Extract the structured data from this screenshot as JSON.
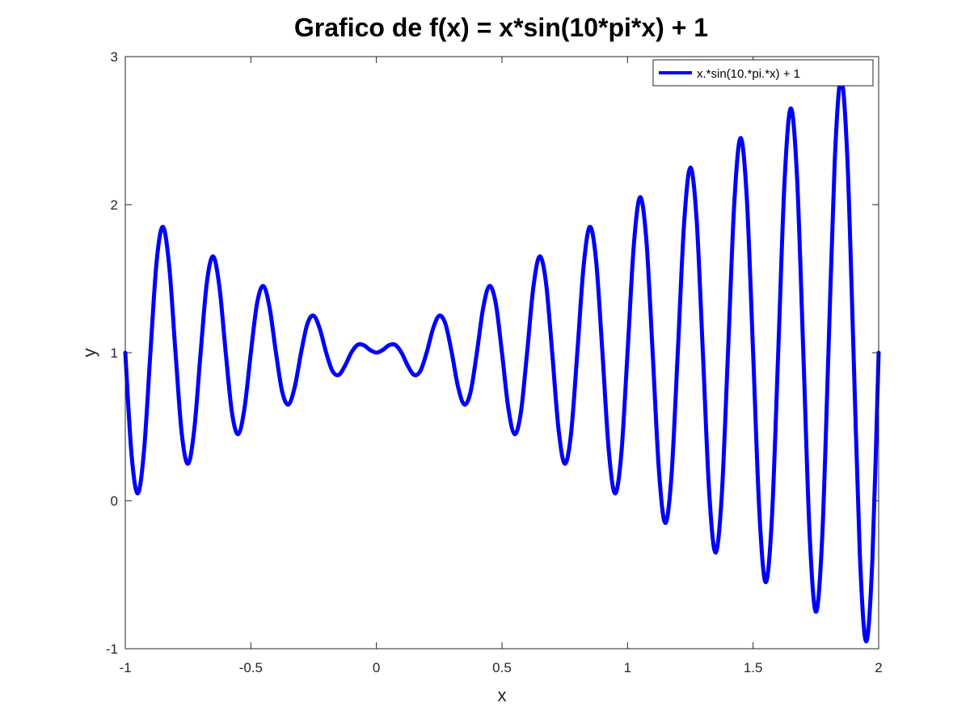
{
  "chart_data": {
    "type": "line",
    "title": "Grafico de f(x) = x*sin(10*pi*x) + 1",
    "xlabel": "x",
    "ylabel": "y",
    "xlim": [
      -1,
      2
    ],
    "ylim": [
      -1,
      3
    ],
    "xticks": [
      -1,
      -0.5,
      0,
      0.5,
      1,
      1.5,
      2
    ],
    "xtick_labels": [
      "-1",
      "-0.5",
      "0",
      "0.5",
      "1",
      "1.5",
      "2"
    ],
    "yticks": [
      -1,
      0,
      1,
      2,
      3
    ],
    "ytick_labels": [
      "-1",
      "0",
      "1",
      "2",
      "3"
    ],
    "grid": false,
    "legend_position": "top-right",
    "series": [
      {
        "name": "x.*sin(10.*pi.*x) + 1",
        "color": "#0000ff",
        "x": [
          -1,
          -0.975,
          -0.95,
          -0.925,
          -0.9,
          -0.875,
          -0.85,
          -0.825,
          -0.8,
          -0.775,
          -0.75,
          -0.725,
          -0.7,
          -0.675,
          -0.65,
          -0.625,
          -0.6,
          -0.575,
          -0.55,
          -0.525,
          -0.5,
          -0.475,
          -0.45,
          -0.425,
          -0.4,
          -0.375,
          -0.35,
          -0.325,
          -0.3,
          -0.275,
          -0.25,
          -0.225,
          -0.2,
          -0.175,
          -0.15,
          -0.125,
          -0.1,
          -0.075,
          -0.05,
          -0.025,
          0,
          0.025,
          0.05,
          0.075,
          0.1,
          0.125,
          0.15,
          0.175,
          0.2,
          0.225,
          0.25,
          0.275,
          0.3,
          0.325,
          0.35,
          0.375,
          0.4,
          0.425,
          0.45,
          0.475,
          0.5,
          0.525,
          0.55,
          0.575,
          0.6,
          0.625,
          0.65,
          0.675,
          0.7,
          0.725,
          0.75,
          0.775,
          0.8,
          0.825,
          0.85,
          0.875,
          0.9,
          0.925,
          0.95,
          0.975,
          1,
          1.025,
          1.05,
          1.075,
          1.1,
          1.125,
          1.15,
          1.175,
          1.2,
          1.225,
          1.25,
          1.275,
          1.3,
          1.325,
          1.35,
          1.375,
          1.4,
          1.425,
          1.45,
          1.475,
          1.5,
          1.525,
          1.55,
          1.575,
          1.6,
          1.625,
          1.65,
          1.675,
          1.7,
          1.725,
          1.75,
          1.775,
          1.8,
          1.825,
          1.85,
          1.875,
          1.9,
          1.925,
          1.95,
          1.975,
          2
        ],
        "y": [
          1,
          0.311,
          0.05,
          0.346,
          1,
          1.619,
          1.85,
          1.583,
          1,
          0.452,
          0.25,
          0.487,
          1,
          1.477,
          1.65,
          1.442,
          1,
          0.593,
          0.45,
          0.629,
          1,
          1.336,
          1.45,
          1.301,
          1,
          0.735,
          0.65,
          0.77,
          1,
          1.194,
          1.25,
          1.159,
          1,
          0.876,
          0.85,
          0.912,
          1,
          1.053,
          1.05,
          1.018,
          1,
          1.018,
          1.05,
          1.053,
          1,
          0.912,
          0.85,
          0.876,
          1,
          1.159,
          1.25,
          1.194,
          1,
          0.77,
          0.65,
          0.735,
          1,
          1.301,
          1.45,
          1.336,
          1,
          0.629,
          0.45,
          0.593,
          1,
          1.442,
          1.65,
          1.477,
          1,
          0.487,
          0.25,
          0.452,
          1,
          1.583,
          1.85,
          1.619,
          1,
          0.346,
          0.05,
          0.311,
          1,
          1.725,
          2.05,
          1.76,
          1,
          0.205,
          -0.15,
          0.169,
          1,
          1.866,
          2.25,
          1.902,
          1,
          0.063,
          -0.35,
          0.028,
          1,
          2.008,
          2.45,
          2.043,
          1,
          -0.078,
          -0.55,
          -0.114,
          1,
          2.149,
          2.65,
          2.185,
          1,
          -0.22,
          -0.75,
          -0.255,
          1,
          2.291,
          2.85,
          2.326,
          1,
          -0.361,
          -0.95,
          -0.396,
          1
        ]
      }
    ]
  }
}
